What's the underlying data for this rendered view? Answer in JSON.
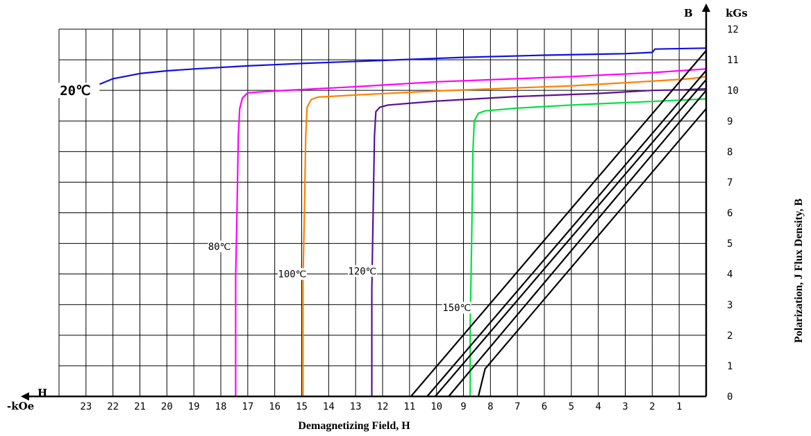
{
  "chart_data": {
    "type": "line",
    "xlabel": "Demagnetizing Field, H",
    "ylabel": "Polarization,  J  Flux Density,  B",
    "x_axis_symbol": "H",
    "x_axis_unit": "-kOe",
    "y_axis_symbol": "B",
    "y_axis_unit": "kGs",
    "x_ticks": [
      23,
      22,
      21,
      20,
      19,
      18,
      17,
      16,
      15,
      14,
      13,
      12,
      11,
      10,
      9,
      8,
      7,
      6,
      5,
      4,
      3,
      2,
      1
    ],
    "y_ticks": [
      0,
      1,
      2,
      3,
      4,
      5,
      6,
      7,
      8,
      9,
      10,
      11,
      12
    ],
    "xlim": [
      24,
      0
    ],
    "ylim": [
      0,
      12
    ],
    "grid": true,
    "series": [
      {
        "name": "20℃",
        "color": "#1010e0",
        "points": [
          [
            22.5,
            10.2
          ],
          [
            22,
            10.38
          ],
          [
            21,
            10.55
          ],
          [
            20,
            10.64
          ],
          [
            19,
            10.7
          ],
          [
            17,
            10.8
          ],
          [
            15,
            10.88
          ],
          [
            12,
            10.98
          ],
          [
            9,
            11.08
          ],
          [
            6,
            11.15
          ],
          [
            3,
            11.2
          ],
          [
            2,
            11.24
          ],
          [
            1.9,
            11.35
          ],
          [
            0,
            11.38
          ]
        ]
      },
      {
        "name": "80℃",
        "color": "#ff00ff",
        "points": [
          [
            17.45,
            0
          ],
          [
            17.45,
            3.9
          ],
          [
            17.4,
            6.0
          ],
          [
            17.35,
            8.5
          ],
          [
            17.3,
            9.4
          ],
          [
            17.2,
            9.75
          ],
          [
            17.0,
            9.92
          ],
          [
            16.0,
            9.98
          ],
          [
            13,
            10.12
          ],
          [
            10,
            10.28
          ],
          [
            5,
            10.45
          ],
          [
            2,
            10.58
          ],
          [
            0,
            10.7
          ]
        ]
      },
      {
        "name": "100℃",
        "color": "#ff8000",
        "points": [
          [
            14.95,
            0
          ],
          [
            14.95,
            3.85
          ],
          [
            14.9,
            6.0
          ],
          [
            14.85,
            8.5
          ],
          [
            14.8,
            9.45
          ],
          [
            14.65,
            9.7
          ],
          [
            14.4,
            9.78
          ],
          [
            13,
            9.85
          ],
          [
            10,
            9.98
          ],
          [
            5,
            10.15
          ],
          [
            2,
            10.3
          ],
          [
            0.6,
            10.38
          ],
          [
            0,
            10.45
          ]
        ]
      },
      {
        "name": "120℃",
        "color": "#5a1090",
        "points": [
          [
            12.4,
            0
          ],
          [
            12.4,
            3.5
          ],
          [
            12.35,
            6.0
          ],
          [
            12.3,
            8.5
          ],
          [
            12.25,
            9.3
          ],
          [
            12.1,
            9.45
          ],
          [
            11.8,
            9.52
          ],
          [
            10,
            9.65
          ],
          [
            7,
            9.8
          ],
          [
            4,
            9.9
          ],
          [
            2,
            10.0
          ],
          [
            0.8,
            10.02
          ],
          [
            0,
            10.05
          ]
        ]
      },
      {
        "name": "150℃",
        "color": "#00e040",
        "points": [
          [
            8.75,
            0
          ],
          [
            8.75,
            2.4
          ],
          [
            8.7,
            5.0
          ],
          [
            8.65,
            8.0
          ],
          [
            8.6,
            9.0
          ],
          [
            8.45,
            9.25
          ],
          [
            8.2,
            9.33
          ],
          [
            7,
            9.42
          ],
          [
            5,
            9.52
          ],
          [
            3,
            9.6
          ],
          [
            1,
            9.68
          ],
          [
            0,
            9.72
          ]
        ]
      },
      {
        "name": "B-load-1",
        "color": "#000000",
        "points": [
          [
            10.95,
            0
          ],
          [
            0,
            11.3
          ]
        ]
      },
      {
        "name": "B-load-2",
        "color": "#000000",
        "points": [
          [
            10.35,
            0
          ],
          [
            0,
            10.65
          ]
        ]
      },
      {
        "name": "B-load-3",
        "color": "#000000",
        "points": [
          [
            10.05,
            0
          ],
          [
            0,
            10.35
          ]
        ]
      },
      {
        "name": "B-load-4",
        "color": "#000000",
        "points": [
          [
            9.55,
            0
          ],
          [
            0,
            10.0
          ]
        ]
      },
      {
        "name": "B-load-5",
        "color": "#000000",
        "points": [
          [
            8.45,
            0
          ],
          [
            8.2,
            0.9
          ],
          [
            0,
            9.4
          ]
        ]
      }
    ],
    "annotations": [
      {
        "text": "20℃",
        "x": 23.4,
        "y": 10.0,
        "style": "big"
      },
      {
        "text": "80℃",
        "x": 18.05,
        "y": 4.9,
        "style": "small"
      },
      {
        "text": "100℃",
        "x": 15.35,
        "y": 4.0,
        "style": "small"
      },
      {
        "text": "120℃",
        "x": 12.75,
        "y": 4.1,
        "style": "small"
      },
      {
        "text": "150℃",
        "x": 9.25,
        "y": 2.9,
        "style": "small"
      }
    ]
  }
}
